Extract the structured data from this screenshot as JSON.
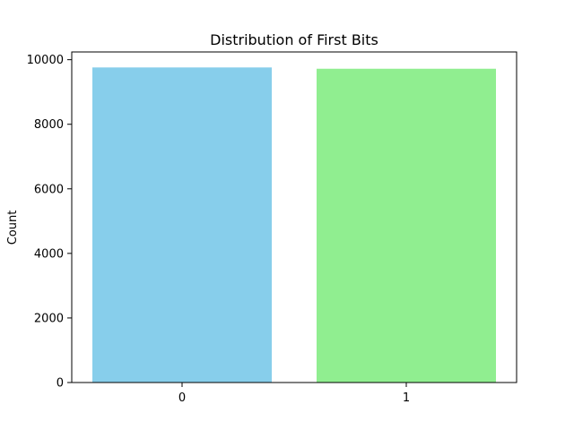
{
  "chart_data": {
    "type": "bar",
    "title": "Distribution of First Bits",
    "xlabel": "",
    "ylabel": "Count",
    "categories": [
      "0",
      "1"
    ],
    "values": [
      9760,
      9720
    ],
    "ylim": [
      0,
      10240
    ],
    "yticks": [
      0,
      2000,
      4000,
      6000,
      8000,
      10000
    ],
    "ytick_labels": [
      "0",
      "2000",
      "4000",
      "6000",
      "8000",
      "10000"
    ],
    "colors": [
      "#87ceeb",
      "#90ee90"
    ],
    "grid": false,
    "legend": "none"
  }
}
